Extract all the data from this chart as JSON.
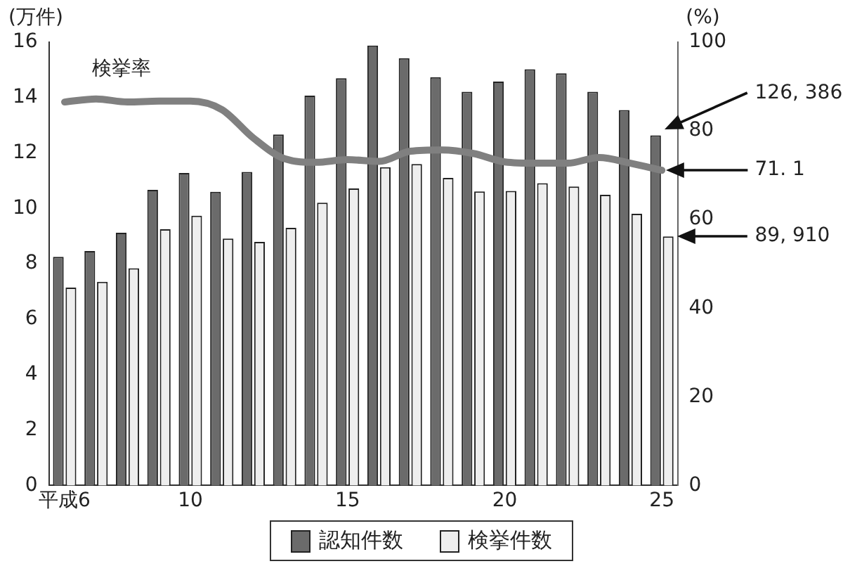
{
  "chart_data": {
    "type": "bar",
    "categories": [
      "平成6",
      null,
      null,
      null,
      "10",
      null,
      null,
      null,
      null,
      "15",
      null,
      null,
      null,
      null,
      "20",
      null,
      null,
      null,
      null,
      "25"
    ],
    "ylabel": "(万件)",
    "y2label": "(%)",
    "series": [
      {
        "name": "認知件数",
        "color": "#6b6b6b",
        "values": [
          8.25,
          8.46,
          9.12,
          10.67,
          11.28,
          10.6,
          11.32,
          12.67,
          14.07,
          14.7,
          15.88,
          15.42,
          14.74,
          14.21,
          14.58,
          15.02,
          14.88,
          14.21,
          13.55,
          12.64
        ]
      },
      {
        "name": "検挙件数",
        "color": "#eeeeee",
        "values": [
          7.14,
          7.35,
          7.84,
          9.25,
          9.74,
          8.91,
          8.79,
          9.3,
          10.21,
          10.72,
          11.49,
          11.6,
          11.1,
          10.61,
          10.63,
          10.91,
          10.79,
          10.49,
          9.81,
          8.99
        ]
      },
      {
        "name": "検挙率",
        "type": "line",
        "axis": "y2",
        "color": "#808080",
        "values": [
          86.5,
          87.2,
          86.5,
          86.7,
          86.7,
          84.8,
          78.4,
          73.7,
          72.9,
          73.5,
          73.1,
          75.4,
          75.7,
          74.9,
          73.0,
          72.7,
          72.7,
          74.0,
          72.7,
          71.1
        ]
      }
    ],
    "ylim": [
      0,
      16
    ],
    "yticks": [
      0,
      2,
      4,
      6,
      8,
      10,
      12,
      14,
      16
    ],
    "y2lim": [
      0,
      100
    ],
    "y2ticks": [
      0,
      20,
      40,
      60,
      80,
      100
    ],
    "grid": false,
    "legend": "bottom",
    "annotations": [
      "126, 386",
      "89, 910",
      "71. 1"
    ]
  }
}
